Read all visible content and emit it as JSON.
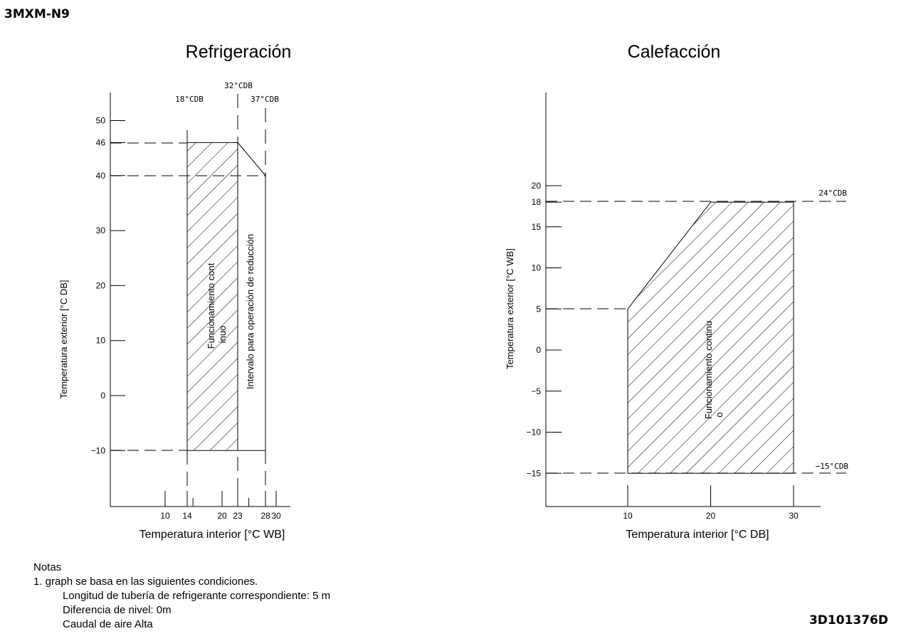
{
  "model": "3MXM-N9",
  "doc_id": "3D101376D",
  "notes": {
    "title": "Notas",
    "line1": "1. graph se basa en las siguientes condiciones.",
    "line2": "Longitud de tubería de refrigerante correspondiente: 5 m",
    "line3": "Diferencia de nivel: 0m",
    "line4": "Caudal de aire Alta"
  },
  "chart_data": [
    {
      "type": "area",
      "title": "Refrigeración",
      "xlabel": "Temperatura interior [°C WB]",
      "ylabel": "Temperatura exterior [°C DB]",
      "x_ticks": [
        "10",
        "14",
        "20",
        "23",
        "28",
        "30"
      ],
      "y_ticks": [
        "50",
        "46",
        "40",
        "30",
        "20",
        "10",
        "0",
        "−10"
      ],
      "top_labels": [
        "18°CDB",
        "32°CDB",
        "37°CDB"
      ],
      "regions": [
        {
          "name": "Funcionamiento continuo",
          "label_lines": [
            "Funcionamiento cont",
            "inuo"
          ],
          "polygon": [
            [
              14,
              -10
            ],
            [
              14,
              46
            ],
            [
              23,
              46
            ],
            [
              23,
              -10
            ]
          ],
          "hatched": true
        },
        {
          "name": "Intervalo para operación de reducción",
          "label_lines": [
            "Intervalo para operación de reducción"
          ],
          "polygon": [
            [
              23,
              -10
            ],
            [
              23,
              46
            ],
            [
              28,
              40
            ],
            [
              28,
              -10
            ]
          ],
          "hatched": false
        }
      ],
      "xlim": [
        7,
        31
      ],
      "ylim": [
        -20,
        55
      ]
    },
    {
      "type": "area",
      "title": "Calefacción",
      "xlabel": "Temperatura interior [°C DB]",
      "ylabel": "Temperatura exterior [°C WB]",
      "x_ticks": [
        "10",
        "20",
        "30"
      ],
      "y_ticks": [
        "20",
        "18",
        "15",
        "10",
        "5",
        "0",
        "−5",
        "−10",
        "−15"
      ],
      "side_labels": [
        "24°CDB",
        "−15°CDB"
      ],
      "regions": [
        {
          "name": "Funcionamiento continuo",
          "label_lines": [
            "Funcionamiento continu",
            "o"
          ],
          "polygon": [
            [
              10,
              -15
            ],
            [
              10,
              5
            ],
            [
              20,
              18
            ],
            [
              30,
              18
            ],
            [
              30,
              -15
            ]
          ],
          "hatched": true
        }
      ],
      "xlim": [
        0,
        33
      ],
      "ylim": [
        -19,
        31
      ]
    }
  ]
}
